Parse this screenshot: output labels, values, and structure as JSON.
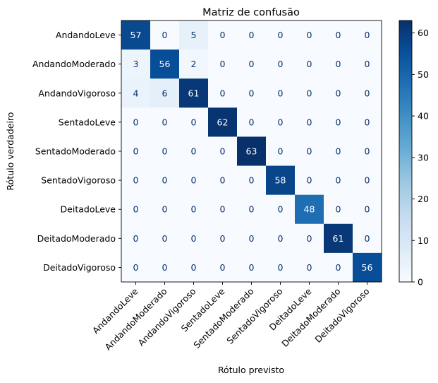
{
  "chart_data": {
    "type": "heatmap",
    "title": "Matriz de confusão",
    "xlabel": "Rótulo previsto",
    "ylabel": "Rótulo verdadeiro",
    "labels": [
      "AndandoLeve",
      "AndandoModerado",
      "AndandoVigoroso",
      "SentadoLeve",
      "SentadoModerado",
      "SentadoVigoroso",
      "DeitadoLeve",
      "DeitadoModerado",
      "DeitadoVigoroso"
    ],
    "matrix": [
      [
        57,
        0,
        5,
        0,
        0,
        0,
        0,
        0,
        0
      ],
      [
        3,
        56,
        2,
        0,
        0,
        0,
        0,
        0,
        0
      ],
      [
        4,
        6,
        61,
        0,
        0,
        0,
        0,
        0,
        0
      ],
      [
        0,
        0,
        0,
        62,
        0,
        0,
        0,
        0,
        0
      ],
      [
        0,
        0,
        0,
        0,
        63,
        0,
        0,
        0,
        0
      ],
      [
        0,
        0,
        0,
        0,
        0,
        58,
        0,
        0,
        0
      ],
      [
        0,
        0,
        0,
        0,
        0,
        0,
        48,
        0,
        0
      ],
      [
        0,
        0,
        0,
        0,
        0,
        0,
        0,
        61,
        0
      ],
      [
        0,
        0,
        0,
        0,
        0,
        0,
        0,
        0,
        56
      ]
    ],
    "colormap": "Blues",
    "value_range": [
      0,
      63
    ],
    "colorbar_ticks": [
      "0",
      "10",
      "20",
      "30",
      "40",
      "50",
      "60"
    ]
  }
}
